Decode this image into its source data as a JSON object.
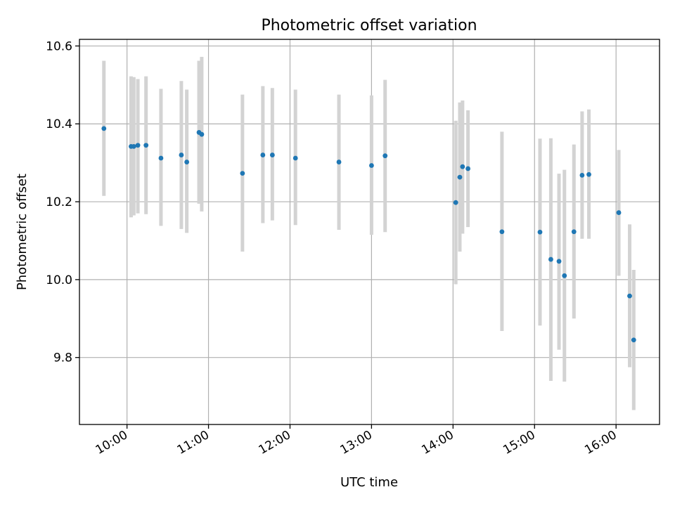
{
  "chart_data": {
    "type": "scatter",
    "title": "Photometric offset variation",
    "xlabel": "UTC time",
    "ylabel": "Photometric offset",
    "x_ticks": [
      "10:00",
      "11:00",
      "12:00",
      "13:00",
      "14:00",
      "15:00",
      "16:00"
    ],
    "y_ticks": [
      "9.8",
      "10.0",
      "10.2",
      "10.4",
      "10.6"
    ],
    "y_tick_values": [
      9.8,
      10.0,
      10.2,
      10.4,
      10.6
    ],
    "xlim": [
      "09:25",
      "16:32"
    ],
    "ylim": [
      9.628,
      10.617
    ],
    "grid": true,
    "marker_color": "#1f77b4",
    "errorbar_color": "#d3d3d3",
    "points": [
      {
        "t": "09:43",
        "y": 10.388,
        "lo": 10.215,
        "hi": 10.562
      },
      {
        "t": "10:03",
        "y": 10.342,
        "lo": 10.16,
        "hi": 10.522
      },
      {
        "t": "10:05",
        "y": 10.342,
        "lo": 10.165,
        "hi": 10.52
      },
      {
        "t": "10:08",
        "y": 10.345,
        "lo": 10.17,
        "hi": 10.515
      },
      {
        "t": "10:14",
        "y": 10.345,
        "lo": 10.168,
        "hi": 10.522
      },
      {
        "t": "10:25",
        "y": 10.312,
        "lo": 10.138,
        "hi": 10.49
      },
      {
        "t": "10:40",
        "y": 10.32,
        "lo": 10.13,
        "hi": 10.51
      },
      {
        "t": "10:44",
        "y": 10.302,
        "lo": 10.12,
        "hi": 10.488
      },
      {
        "t": "10:53",
        "y": 10.378,
        "lo": 10.195,
        "hi": 10.562
      },
      {
        "t": "10:55",
        "y": 10.373,
        "lo": 10.175,
        "hi": 10.572
      },
      {
        "t": "11:25",
        "y": 10.273,
        "lo": 10.072,
        "hi": 10.475
      },
      {
        "t": "11:40",
        "y": 10.32,
        "lo": 10.145,
        "hi": 10.497
      },
      {
        "t": "11:47",
        "y": 10.32,
        "lo": 10.152,
        "hi": 10.492
      },
      {
        "t": "12:04",
        "y": 10.312,
        "lo": 10.14,
        "hi": 10.488
      },
      {
        "t": "12:36",
        "y": 10.302,
        "lo": 10.128,
        "hi": 10.475
      },
      {
        "t": "13:00",
        "y": 10.293,
        "lo": 10.115,
        "hi": 10.473
      },
      {
        "t": "13:10",
        "y": 10.318,
        "lo": 10.122,
        "hi": 10.513
      },
      {
        "t": "14:02",
        "y": 10.198,
        "lo": 9.988,
        "hi": 10.408
      },
      {
        "t": "14:05",
        "y": 10.263,
        "lo": 10.072,
        "hi": 10.455
      },
      {
        "t": "14:07",
        "y": 10.29,
        "lo": 10.118,
        "hi": 10.46
      },
      {
        "t": "14:11",
        "y": 10.285,
        "lo": 10.135,
        "hi": 10.435
      },
      {
        "t": "14:36",
        "y": 10.123,
        "lo": 9.868,
        "hi": 10.38
      },
      {
        "t": "15:04",
        "y": 10.122,
        "lo": 9.882,
        "hi": 10.362
      },
      {
        "t": "15:12",
        "y": 10.052,
        "lo": 9.74,
        "hi": 10.363
      },
      {
        "t": "15:18",
        "y": 10.047,
        "lo": 9.82,
        "hi": 10.272
      },
      {
        "t": "15:22",
        "y": 10.01,
        "lo": 9.738,
        "hi": 10.282
      },
      {
        "t": "15:29",
        "y": 10.123,
        "lo": 9.9,
        "hi": 10.347
      },
      {
        "t": "15:35",
        "y": 10.268,
        "lo": 10.105,
        "hi": 10.432
      },
      {
        "t": "15:40",
        "y": 10.27,
        "lo": 10.105,
        "hi": 10.437
      },
      {
        "t": "16:02",
        "y": 10.172,
        "lo": 10.01,
        "hi": 10.333
      },
      {
        "t": "16:10",
        "y": 9.958,
        "lo": 9.775,
        "hi": 10.142
      },
      {
        "t": "16:13",
        "y": 9.845,
        "lo": 9.665,
        "hi": 10.025
      }
    ]
  }
}
